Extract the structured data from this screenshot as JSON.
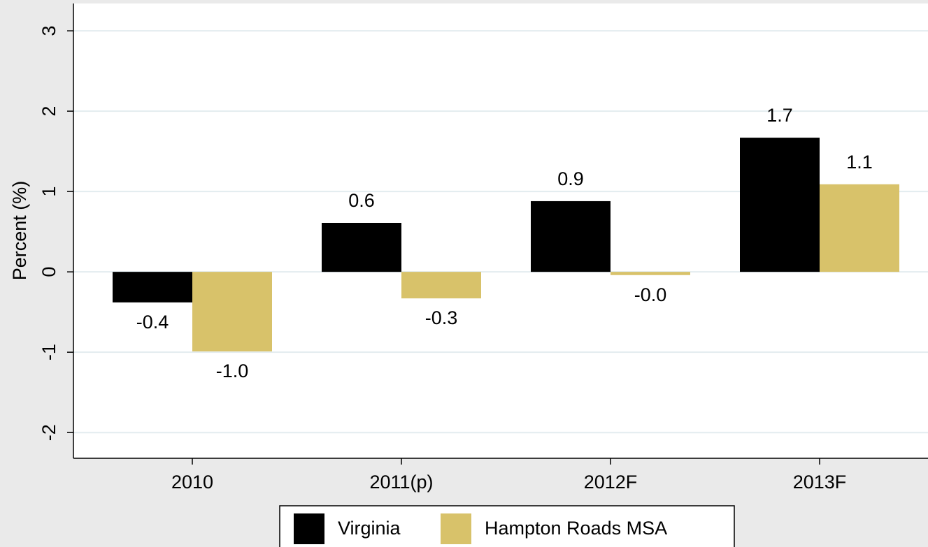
{
  "chart_data": {
    "type": "bar",
    "y_label": "Percent (%)",
    "categories": [
      "2010",
      "2011(p)",
      "2012F",
      "2013F"
    ],
    "series": [
      {
        "name": "Virginia",
        "color": "#000000",
        "values": [
          -0.38,
          0.61,
          0.88,
          1.67
        ],
        "value_labels": [
          "-0.4",
          "0.6",
          "0.9",
          "1.7"
        ]
      },
      {
        "name": "Hampton Roads MSA",
        "color": "#d8c26a",
        "values": [
          -0.99,
          -0.33,
          -0.04,
          1.09
        ],
        "value_labels": [
          "-1.0",
          "-0.3",
          "-0.0",
          "1.1"
        ]
      }
    ],
    "ylim": [
      -2.32,
      3.34
    ],
    "yticks": [
      -2,
      -1,
      0,
      1,
      2,
      3
    ],
    "grid": true,
    "legend": "bottom"
  }
}
